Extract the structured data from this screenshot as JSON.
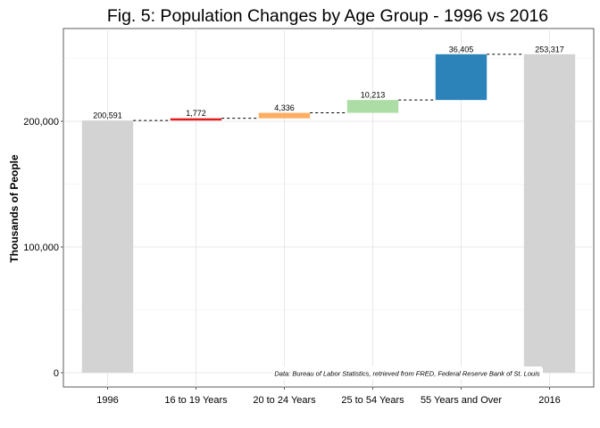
{
  "chart_data": {
    "type": "bar",
    "subtype": "waterfall",
    "title": "Fig. 5: Population Changes by Age Group - 1996 vs 2016",
    "xlabel": "",
    "ylabel": "Thousands of People",
    "categories": [
      "1996",
      "16 to 19 Years",
      "20 to 24 Years",
      "25 to 54 Years",
      "55 Years and Over",
      "2016"
    ],
    "values": [
      200591,
      1772,
      4336,
      10213,
      36405,
      253317
    ],
    "value_labels": [
      "200,591",
      "1,772",
      "4,336",
      "10,213",
      "36,405",
      "253,317"
    ],
    "kinds": [
      "total",
      "change",
      "change",
      "change",
      "change",
      "total"
    ],
    "colors": [
      "#d3d3d3",
      "#e31a1c",
      "#fdae61",
      "#abdda4",
      "#2b83ba",
      "#d3d3d3"
    ],
    "yticks": [
      0,
      100000,
      200000
    ],
    "ytick_labels": [
      "0",
      "100,000",
      "200,000"
    ],
    "ylim": [
      -10000,
      265000
    ],
    "grid": true,
    "legend": "none",
    "caption": "Data: Bureau of Labor Statistics, retrieved from FRED, Federal Reserve Bank of St. Louis"
  }
}
